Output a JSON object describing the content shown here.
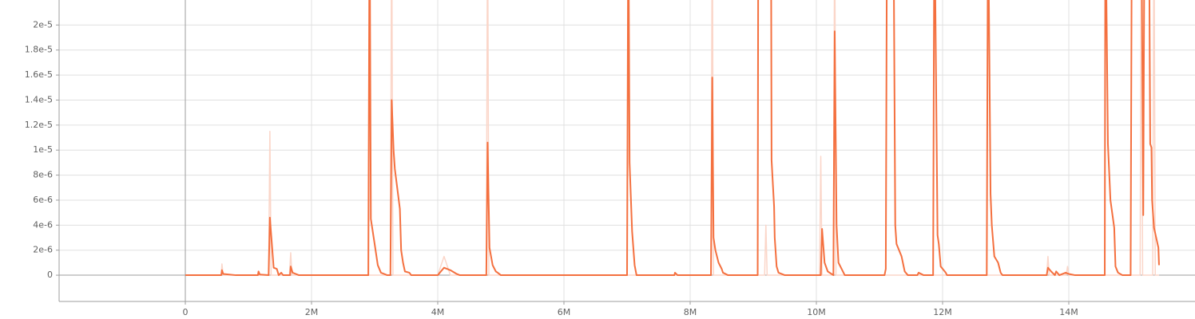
{
  "chart_data": {
    "type": "line",
    "xlim": [
      -2000000,
      16000000
    ],
    "xticks": [
      0,
      {
        "value": 2000000,
        "label": "2M"
      },
      {
        "value": 4000000,
        "label": "4M"
      },
      {
        "value": 6000000,
        "label": "6M"
      },
      {
        "value": 8000000,
        "label": "8M"
      },
      {
        "value": 10000000,
        "label": "10M"
      },
      {
        "value": 12000000,
        "label": "12M"
      },
      {
        "value": 14000000,
        "label": "14M"
      }
    ],
    "ylim": [
      -2.1e-06,
      2.2e-05
    ],
    "yticks": [
      0,
      {
        "value": 2e-06,
        "label": "2e-6"
      },
      {
        "value": 4e-06,
        "label": "4e-6"
      },
      {
        "value": 6e-06,
        "label": "6e-6"
      },
      {
        "value": 8e-06,
        "label": "8e-6"
      },
      {
        "value": 1e-05,
        "label": "1e-5"
      },
      {
        "value": 1.2e-05,
        "label": "1.2e-5"
      },
      {
        "value": 1.4e-05,
        "label": "1.4e-5"
      },
      {
        "value": 1.6e-05,
        "label": "1.6e-5"
      },
      {
        "value": 1.8e-05,
        "label": "1.8e-5"
      },
      {
        "value": 2e-05,
        "label": "2e-5"
      }
    ],
    "grid": true,
    "series": [
      {
        "color": "#fbd6c9",
        "x": [
          0,
          570000,
          580000,
          600000,
          1320000,
          1340000,
          1360000,
          1650000,
          1670000,
          1690000,
          3250000,
          3270000,
          3290000,
          4000000,
          4100000,
          4200000,
          4770000,
          4790000,
          4810000,
          8330000,
          8350000,
          8370000,
          9180000,
          9200000,
          9220000,
          10050000,
          10070000,
          10090000,
          10270000,
          10290000,
          10310000,
          13650000,
          13670000,
          13690000,
          13960000,
          13980000,
          14000000,
          15130000,
          15150000,
          15170000,
          15330000,
          15350000,
          15370000,
          15430000
        ],
        "values": [
          0,
          0,
          9e-07,
          0,
          0,
          1.15e-05,
          0,
          0,
          1.8e-06,
          0,
          0,
          3e-05,
          0,
          0,
          1.5e-06,
          0,
          0,
          3e-05,
          0,
          0,
          3e-05,
          0,
          0,
          4e-06,
          0,
          0,
          9.5e-06,
          0,
          0,
          3e-05,
          0,
          0,
          1.5e-06,
          0,
          0,
          7e-07,
          0,
          0,
          3e-05,
          0,
          0,
          3e-05,
          0,
          0
        ]
      },
      {
        "color": "#f4703f",
        "x": [
          0,
          570000,
          580000,
          600000,
          800000,
          1150000,
          1160000,
          1180000,
          1320000,
          1340000,
          1400000,
          1450000,
          1480000,
          1520000,
          1550000,
          1660000,
          1670000,
          1700000,
          1800000,
          2900000,
          2920000,
          2940000,
          3000000,
          3050000,
          3100000,
          3200000,
          3250000,
          3270000,
          3300000,
          3320000,
          3400000,
          3420000,
          3450000,
          3480000,
          3550000,
          3580000,
          4000000,
          4100000,
          4200000,
          4300000,
          4350000,
          4770000,
          4790000,
          4820000,
          4870000,
          4920000,
          4950000,
          5000000,
          7000000,
          7020000,
          7040000,
          7080000,
          7120000,
          7150000,
          7750000,
          7760000,
          7800000,
          8330000,
          8350000,
          8370000,
          8400000,
          8450000,
          8500000,
          8520000,
          8600000,
          9070000,
          9080000,
          9280000,
          9290000,
          9330000,
          9340000,
          9370000,
          9400000,
          9500000,
          10070000,
          10090000,
          10130000,
          10180000,
          10270000,
          10290000,
          10320000,
          10350000,
          10400000,
          10450000,
          11080000,
          11100000,
          11120000,
          11220000,
          11250000,
          11270000,
          11350000,
          11400000,
          11450000,
          11600000,
          11620000,
          11700000,
          11850000,
          11870000,
          11920000,
          11940000,
          11970000,
          12050000,
          12070000,
          12700000,
          12720000,
          12760000,
          12780000,
          12820000,
          12880000,
          12920000,
          12950000,
          13650000,
          13670000,
          13720000,
          13780000,
          13800000,
          13850000,
          13950000,
          14000000,
          14100000,
          14570000,
          14580000,
          14620000,
          14660000,
          14720000,
          14740000,
          14780000,
          14850000,
          14980000,
          15000000,
          15150000,
          15180000,
          15200000,
          15270000,
          15290000,
          15310000,
          15320000,
          15350000,
          15420000,
          15430000
        ],
        "values": [
          0,
          0,
          4e-07,
          1e-07,
          0,
          0,
          3e-07,
          5e-08,
          0,
          4.6e-06,
          6e-07,
          5e-07,
          0,
          2e-07,
          0,
          0,
          7e-07,
          2e-07,
          0,
          0,
          3e-05,
          4.5e-06,
          2.5e-06,
          8e-07,
          2e-07,
          0,
          0,
          1.4e-05,
          1e-05,
          8.5e-06,
          5.3e-06,
          2e-06,
          1e-06,
          3e-07,
          2e-07,
          0,
          0,
          6e-07,
          4e-07,
          1e-07,
          0,
          0,
          1.06e-05,
          2.2e-06,
          8e-07,
          3e-07,
          2e-07,
          0,
          0,
          3e-05,
          9e-06,
          3.5e-06,
          8e-07,
          0,
          0,
          2e-07,
          0,
          0,
          1.58e-05,
          3e-06,
          2e-06,
          1e-06,
          5e-07,
          2e-07,
          0,
          0,
          3e-05,
          3e-05,
          9.2e-06,
          5.5e-06,
          3e-06,
          7e-07,
          2e-07,
          0,
          0,
          3.7e-06,
          1e-06,
          3e-07,
          0,
          1.95e-05,
          4e-06,
          1e-06,
          5e-07,
          0,
          0,
          5e-07,
          3e-05,
          3e-05,
          4e-06,
          2.5e-06,
          1.5e-06,
          3e-07,
          0,
          0,
          2e-07,
          0,
          0,
          3e-05,
          3.2e-06,
          2.5e-06,
          7e-07,
          2e-07,
          0,
          0,
          3e-05,
          6.5e-06,
          4e-06,
          1.5e-06,
          1e-06,
          2e-07,
          0,
          0,
          6e-07,
          3e-07,
          0,
          3e-07,
          0,
          2e-07,
          1e-07,
          0,
          0,
          3e-05,
          1.05e-05,
          6e-06,
          3.8e-06,
          7e-07,
          2e-07,
          0,
          0,
          3e-05,
          3e-05,
          4.8e-06,
          3e-05,
          3e-05,
          1.05e-05,
          1.02e-05,
          6e-06,
          3.8e-06,
          2.2e-06,
          8e-07
        ]
      }
    ]
  }
}
